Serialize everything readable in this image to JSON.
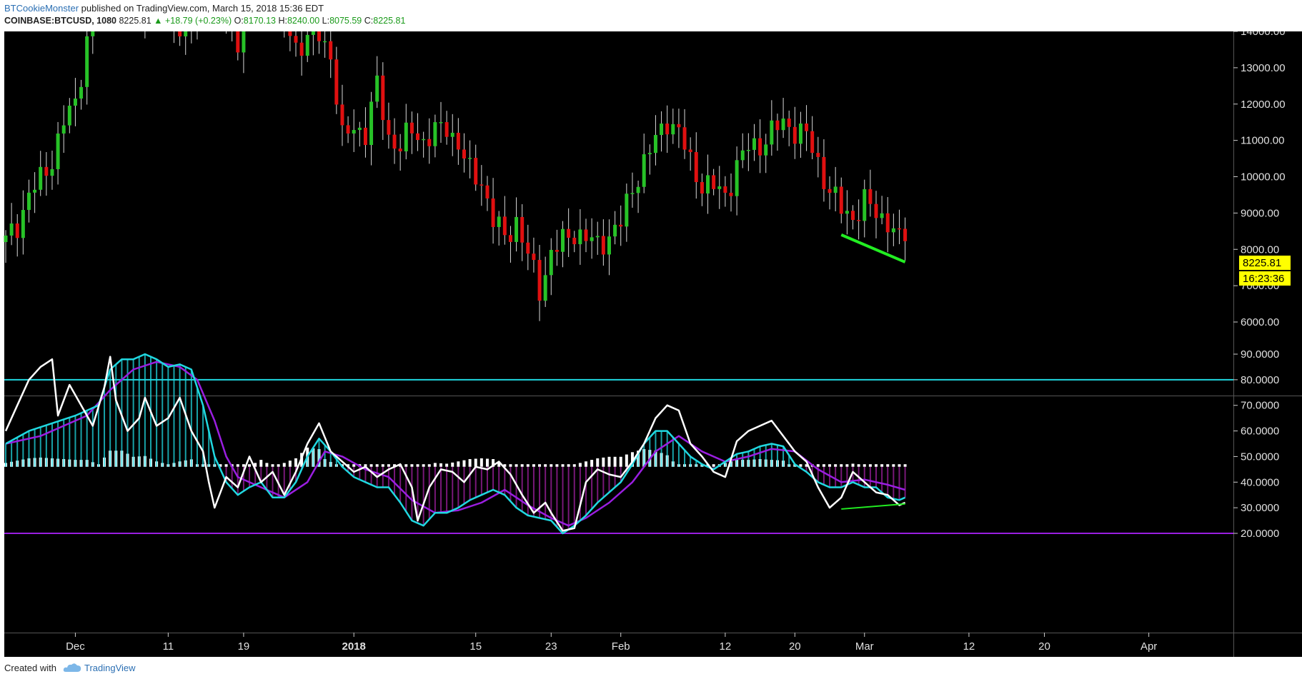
{
  "header": {
    "author": "BTCookieMonster",
    "published": "published on TradingView.com, March 15, 2018 15:36 EDT",
    "symbol": "COINBASE:BTCUSD, 1080",
    "last": "8225.81",
    "change": "▲ +18.79 (+0.23%)",
    "o_label": "O:",
    "o_value": "8170.13",
    "h_label": "H:",
    "h_value": "8240.00",
    "l_label": "L:",
    "l_value": "8075.59",
    "c_label": "C:",
    "c_value": "8225.81"
  },
  "footer": {
    "created_with": "Created with",
    "brand": "TradingView"
  },
  "colors": {
    "background": "#000000",
    "up": "#27c227",
    "down": "#e01010",
    "wick": "#d8d8d8",
    "trend_green": "#22ee22",
    "cyan": "#20d8e0",
    "purple": "#9a1ee0",
    "white": "#ffffff",
    "magenta_hist": "#a020a0",
    "price_label_bg": "#ffff00"
  },
  "chart_data": [
    {
      "type": "candlestick",
      "panel": "price",
      "y_ticks": [
        "14000.00",
        "13000.00",
        "12000.00",
        "11000.00",
        "10000.00",
        "9000.00",
        "8000.00",
        "7000.00",
        "6000.00"
      ],
      "ylim": [
        5500,
        14500
      ],
      "last_price_label": "8225.81",
      "countdown_label": "16:23:36",
      "close_path": [
        {
          "d": 0,
          "c": 8200
        },
        {
          "d": 2,
          "c": 8700
        },
        {
          "d": 4,
          "c": 9500
        },
        {
          "d": 6,
          "c": 9900
        },
        {
          "d": 8,
          "c": 10500
        },
        {
          "d": 10,
          "c": 11500
        },
        {
          "d": 12,
          "c": 12000
        },
        {
          "d": 14,
          "c": 13800
        },
        {
          "d": 16,
          "c": 15800
        },
        {
          "d": 18,
          "c": 15400
        },
        {
          "d": 20,
          "c": 16500
        },
        {
          "d": 22,
          "c": 17200
        },
        {
          "d": 24,
          "c": 14800
        },
        {
          "d": 26,
          "c": 14500
        },
        {
          "d": 28,
          "c": 15200
        },
        {
          "d": 30,
          "c": 14000
        },
        {
          "d": 32,
          "c": 14200
        },
        {
          "d": 34,
          "c": 15300
        },
        {
          "d": 36,
          "c": 15000
        },
        {
          "d": 38,
          "c": 14400
        },
        {
          "d": 40,
          "c": 13800
        },
        {
          "d": 42,
          "c": 15000
        },
        {
          "d": 44,
          "c": 16500
        },
        {
          "d": 46,
          "c": 15200
        },
        {
          "d": 48,
          "c": 14300
        },
        {
          "d": 50,
          "c": 13600
        },
        {
          "d": 52,
          "c": 13800
        },
        {
          "d": 54,
          "c": 13900
        },
        {
          "d": 56,
          "c": 13400
        },
        {
          "d": 58,
          "c": 11000
        },
        {
          "d": 60,
          "c": 11400
        },
        {
          "d": 62,
          "c": 11200
        },
        {
          "d": 64,
          "c": 12500
        },
        {
          "d": 66,
          "c": 11100
        },
        {
          "d": 68,
          "c": 10800
        },
        {
          "d": 70,
          "c": 11300
        },
        {
          "d": 72,
          "c": 11000
        },
        {
          "d": 74,
          "c": 11200
        },
        {
          "d": 76,
          "c": 11400
        },
        {
          "d": 78,
          "c": 10900
        },
        {
          "d": 80,
          "c": 10100
        },
        {
          "d": 82,
          "c": 9900
        },
        {
          "d": 84,
          "c": 8800
        },
        {
          "d": 86,
          "c": 8300
        },
        {
          "d": 88,
          "c": 8800
        },
        {
          "d": 90,
          "c": 7800
        },
        {
          "d": 92,
          "c": 6900
        },
        {
          "d": 94,
          "c": 7900
        },
        {
          "d": 96,
          "c": 8200
        },
        {
          "d": 98,
          "c": 8500
        },
        {
          "d": 100,
          "c": 8300
        },
        {
          "d": 102,
          "c": 8100
        },
        {
          "d": 104,
          "c": 8400
        },
        {
          "d": 106,
          "c": 8700
        },
        {
          "d": 108,
          "c": 9700
        },
        {
          "d": 110,
          "c": 10400
        },
        {
          "d": 112,
          "c": 11000
        },
        {
          "d": 114,
          "c": 11600
        },
        {
          "d": 116,
          "c": 11200
        },
        {
          "d": 118,
          "c": 10400
        },
        {
          "d": 120,
          "c": 9800
        },
        {
          "d": 122,
          "c": 9700
        },
        {
          "d": 124,
          "c": 9500
        },
        {
          "d": 126,
          "c": 10300
        },
        {
          "d": 128,
          "c": 10800
        },
        {
          "d": 130,
          "c": 10900
        },
        {
          "d": 132,
          "c": 11200
        },
        {
          "d": 134,
          "c": 11500
        },
        {
          "d": 136,
          "c": 11300
        },
        {
          "d": 138,
          "c": 11100
        },
        {
          "d": 140,
          "c": 10400
        },
        {
          "d": 142,
          "c": 9600
        },
        {
          "d": 144,
          "c": 9100
        },
        {
          "d": 146,
          "c": 8900
        },
        {
          "d": 148,
          "c": 9300
        },
        {
          "d": 150,
          "c": 9000
        },
        {
          "d": 152,
          "c": 8800
        },
        {
          "d": 154,
          "c": 8200
        },
        {
          "d": 155,
          "c": 8225
        }
      ],
      "trendline": {
        "from": {
          "d": 144,
          "price": 8400
        },
        "to": {
          "d": 155,
          "price": 7650
        }
      }
    },
    {
      "type": "line",
      "panel": "oscillator",
      "y_ticks": [
        "90.0000",
        "80.0000",
        "70.0000",
        "60.0000",
        "50.0000",
        "40.0000",
        "30.0000",
        "20.0000"
      ],
      "ylim": [
        16,
        93
      ],
      "levels": [
        80,
        20
      ],
      "histogram_zero": 46,
      "fast_line": [
        {
          "d": 0,
          "v": 60
        },
        {
          "d": 2,
          "v": 70
        },
        {
          "d": 4,
          "v": 80
        },
        {
          "d": 6,
          "v": 85
        },
        {
          "d": 8,
          "v": 88
        },
        {
          "d": 9,
          "v": 66
        },
        {
          "d": 11,
          "v": 78
        },
        {
          "d": 13,
          "v": 70
        },
        {
          "d": 15,
          "v": 62
        },
        {
          "d": 17,
          "v": 77
        },
        {
          "d": 18,
          "v": 89
        },
        {
          "d": 19,
          "v": 72
        },
        {
          "d": 21,
          "v": 60
        },
        {
          "d": 23,
          "v": 65
        },
        {
          "d": 24,
          "v": 73
        },
        {
          "d": 26,
          "v": 62
        },
        {
          "d": 28,
          "v": 65
        },
        {
          "d": 30,
          "v": 73
        },
        {
          "d": 32,
          "v": 60
        },
        {
          "d": 34,
          "v": 52
        },
        {
          "d": 35,
          "v": 40
        },
        {
          "d": 36,
          "v": 30
        },
        {
          "d": 38,
          "v": 42
        },
        {
          "d": 40,
          "v": 38
        },
        {
          "d": 42,
          "v": 50
        },
        {
          "d": 44,
          "v": 40
        },
        {
          "d": 46,
          "v": 44
        },
        {
          "d": 48,
          "v": 35
        },
        {
          "d": 50,
          "v": 44
        },
        {
          "d": 52,
          "v": 55
        },
        {
          "d": 54,
          "v": 63
        },
        {
          "d": 56,
          "v": 52
        },
        {
          "d": 58,
          "v": 48
        },
        {
          "d": 60,
          "v": 44
        },
        {
          "d": 62,
          "v": 46
        },
        {
          "d": 64,
          "v": 42
        },
        {
          "d": 66,
          "v": 45
        },
        {
          "d": 68,
          "v": 47
        },
        {
          "d": 70,
          "v": 38
        },
        {
          "d": 71,
          "v": 25
        },
        {
          "d": 73,
          "v": 38
        },
        {
          "d": 75,
          "v": 45
        },
        {
          "d": 77,
          "v": 44
        },
        {
          "d": 79,
          "v": 40
        },
        {
          "d": 81,
          "v": 46
        },
        {
          "d": 83,
          "v": 45
        },
        {
          "d": 85,
          "v": 48
        },
        {
          "d": 87,
          "v": 43
        },
        {
          "d": 89,
          "v": 35
        },
        {
          "d": 91,
          "v": 28
        },
        {
          "d": 93,
          "v": 32
        },
        {
          "d": 94,
          "v": 28
        },
        {
          "d": 96,
          "v": 21
        },
        {
          "d": 98,
          "v": 22
        },
        {
          "d": 100,
          "v": 40
        },
        {
          "d": 102,
          "v": 45
        },
        {
          "d": 104,
          "v": 43
        },
        {
          "d": 106,
          "v": 42
        },
        {
          "d": 108,
          "v": 48
        },
        {
          "d": 110,
          "v": 55
        },
        {
          "d": 112,
          "v": 65
        },
        {
          "d": 114,
          "v": 70
        },
        {
          "d": 116,
          "v": 68
        },
        {
          "d": 118,
          "v": 55
        },
        {
          "d": 120,
          "v": 50
        },
        {
          "d": 122,
          "v": 44
        },
        {
          "d": 124,
          "v": 42
        },
        {
          "d": 126,
          "v": 56
        },
        {
          "d": 128,
          "v": 60
        },
        {
          "d": 130,
          "v": 62
        },
        {
          "d": 132,
          "v": 64
        },
        {
          "d": 134,
          "v": 58
        },
        {
          "d": 136,
          "v": 52
        },
        {
          "d": 138,
          "v": 48
        },
        {
          "d": 140,
          "v": 38
        },
        {
          "d": 142,
          "v": 30
        },
        {
          "d": 144,
          "v": 34
        },
        {
          "d": 146,
          "v": 44
        },
        {
          "d": 148,
          "v": 40
        },
        {
          "d": 150,
          "v": 36
        },
        {
          "d": 152,
          "v": 35
        },
        {
          "d": 154,
          "v": 31
        },
        {
          "d": 155,
          "v": 32
        }
      ],
      "signal_line": [
        {
          "d": 0,
          "v": 55
        },
        {
          "d": 4,
          "v": 60
        },
        {
          "d": 8,
          "v": 63
        },
        {
          "d": 12,
          "v": 66
        },
        {
          "d": 16,
          "v": 70
        },
        {
          "d": 18,
          "v": 84
        },
        {
          "d": 20,
          "v": 88
        },
        {
          "d": 22,
          "v": 88
        },
        {
          "d": 24,
          "v": 90
        },
        {
          "d": 26,
          "v": 88
        },
        {
          "d": 28,
          "v": 85
        },
        {
          "d": 30,
          "v": 86
        },
        {
          "d": 32,
          "v": 84
        },
        {
          "d": 34,
          "v": 70
        },
        {
          "d": 36,
          "v": 50
        },
        {
          "d": 38,
          "v": 40
        },
        {
          "d": 40,
          "v": 35
        },
        {
          "d": 42,
          "v": 38
        },
        {
          "d": 44,
          "v": 40
        },
        {
          "d": 46,
          "v": 34
        },
        {
          "d": 48,
          "v": 34
        },
        {
          "d": 50,
          "v": 40
        },
        {
          "d": 52,
          "v": 50
        },
        {
          "d": 54,
          "v": 57
        },
        {
          "d": 56,
          "v": 52
        },
        {
          "d": 58,
          "v": 46
        },
        {
          "d": 60,
          "v": 42
        },
        {
          "d": 62,
          "v": 40
        },
        {
          "d": 64,
          "v": 38
        },
        {
          "d": 66,
          "v": 38
        },
        {
          "d": 68,
          "v": 32
        },
        {
          "d": 70,
          "v": 25
        },
        {
          "d": 72,
          "v": 23
        },
        {
          "d": 74,
          "v": 28
        },
        {
          "d": 76,
          "v": 28
        },
        {
          "d": 78,
          "v": 30
        },
        {
          "d": 80,
          "v": 33
        },
        {
          "d": 82,
          "v": 35
        },
        {
          "d": 84,
          "v": 37
        },
        {
          "d": 86,
          "v": 35
        },
        {
          "d": 88,
          "v": 30
        },
        {
          "d": 90,
          "v": 27
        },
        {
          "d": 92,
          "v": 26
        },
        {
          "d": 94,
          "v": 25
        },
        {
          "d": 96,
          "v": 20
        },
        {
          "d": 98,
          "v": 23
        },
        {
          "d": 100,
          "v": 27
        },
        {
          "d": 102,
          "v": 32
        },
        {
          "d": 104,
          "v": 36
        },
        {
          "d": 106,
          "v": 40
        },
        {
          "d": 108,
          "v": 47
        },
        {
          "d": 110,
          "v": 55
        },
        {
          "d": 112,
          "v": 60
        },
        {
          "d": 114,
          "v": 60
        },
        {
          "d": 116,
          "v": 55
        },
        {
          "d": 118,
          "v": 50
        },
        {
          "d": 120,
          "v": 47
        },
        {
          "d": 122,
          "v": 45
        },
        {
          "d": 124,
          "v": 48
        },
        {
          "d": 126,
          "v": 51
        },
        {
          "d": 128,
          "v": 52
        },
        {
          "d": 130,
          "v": 54
        },
        {
          "d": 132,
          "v": 55
        },
        {
          "d": 134,
          "v": 54
        },
        {
          "d": 136,
          "v": 47
        },
        {
          "d": 138,
          "v": 44
        },
        {
          "d": 140,
          "v": 40
        },
        {
          "d": 142,
          "v": 38
        },
        {
          "d": 144,
          "v": 38
        },
        {
          "d": 146,
          "v": 40
        },
        {
          "d": 148,
          "v": 38
        },
        {
          "d": 150,
          "v": 38
        },
        {
          "d": 152,
          "v": 34
        },
        {
          "d": 154,
          "v": 33
        },
        {
          "d": 155,
          "v": 34
        }
      ],
      "slow_line": [
        {
          "d": 0,
          "v": 55
        },
        {
          "d": 6,
          "v": 58
        },
        {
          "d": 10,
          "v": 62
        },
        {
          "d": 14,
          "v": 66
        },
        {
          "d": 18,
          "v": 76
        },
        {
          "d": 22,
          "v": 84
        },
        {
          "d": 26,
          "v": 87
        },
        {
          "d": 30,
          "v": 85
        },
        {
          "d": 33,
          "v": 80
        },
        {
          "d": 36,
          "v": 64
        },
        {
          "d": 38,
          "v": 50
        },
        {
          "d": 40,
          "v": 42
        },
        {
          "d": 44,
          "v": 38
        },
        {
          "d": 48,
          "v": 34
        },
        {
          "d": 52,
          "v": 40
        },
        {
          "d": 55,
          "v": 52
        },
        {
          "d": 58,
          "v": 50
        },
        {
          "d": 62,
          "v": 45
        },
        {
          "d": 66,
          "v": 42
        },
        {
          "d": 70,
          "v": 33
        },
        {
          "d": 74,
          "v": 28
        },
        {
          "d": 78,
          "v": 29
        },
        {
          "d": 82,
          "v": 32
        },
        {
          "d": 86,
          "v": 37
        },
        {
          "d": 90,
          "v": 31
        },
        {
          "d": 94,
          "v": 26
        },
        {
          "d": 97,
          "v": 23
        },
        {
          "d": 100,
          "v": 26
        },
        {
          "d": 104,
          "v": 32
        },
        {
          "d": 108,
          "v": 40
        },
        {
          "d": 112,
          "v": 52
        },
        {
          "d": 116,
          "v": 58
        },
        {
          "d": 120,
          "v": 52
        },
        {
          "d": 124,
          "v": 48
        },
        {
          "d": 128,
          "v": 50
        },
        {
          "d": 132,
          "v": 53
        },
        {
          "d": 136,
          "v": 52
        },
        {
          "d": 140,
          "v": 45
        },
        {
          "d": 144,
          "v": 40
        },
        {
          "d": 148,
          "v": 41
        },
        {
          "d": 152,
          "v": 39
        },
        {
          "d": 155,
          "v": 37
        }
      ],
      "divergence_line": {
        "from": {
          "d": 144,
          "v": 29.5
        },
        "to": {
          "d": 155,
          "v": 31.5
        }
      }
    }
  ],
  "x_axis": {
    "ticks": [
      {
        "label": "Dec",
        "d": 12,
        "bold": false
      },
      {
        "label": "11",
        "d": 28,
        "bold": false
      },
      {
        "label": "19",
        "d": 41,
        "bold": false
      },
      {
        "label": "2018",
        "d": 60,
        "bold": true
      },
      {
        "label": "15",
        "d": 81,
        "bold": false
      },
      {
        "label": "23",
        "d": 94,
        "bold": false
      },
      {
        "label": "Feb",
        "d": 106,
        "bold": false
      },
      {
        "label": "12",
        "d": 124,
        "bold": false
      },
      {
        "label": "20",
        "d": 136,
        "bold": false
      },
      {
        "label": "Mar",
        "d": 148,
        "bold": false
      },
      {
        "label": "12",
        "d": 166,
        "bold": false
      },
      {
        "label": "20",
        "d": 179,
        "bold": false
      },
      {
        "label": "Apr",
        "d": 197,
        "bold": false
      }
    ]
  }
}
